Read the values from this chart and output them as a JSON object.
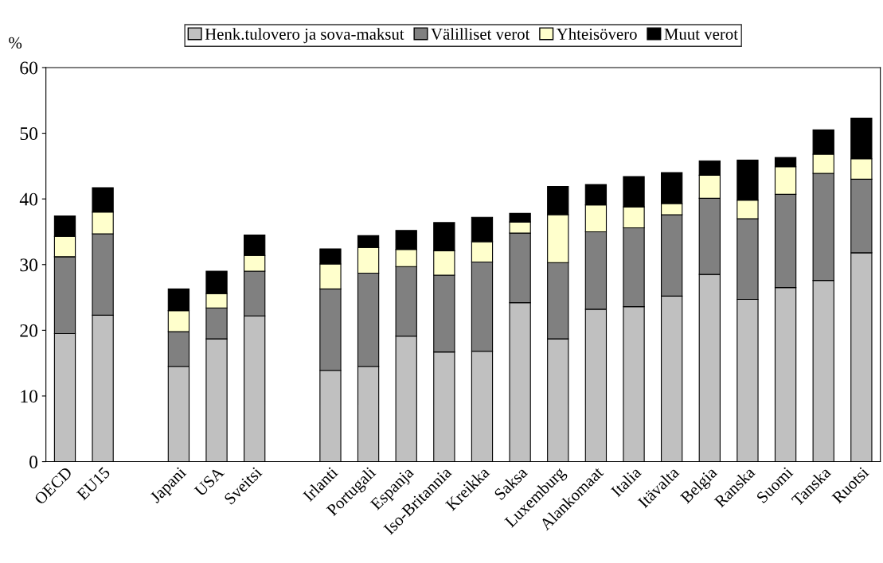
{
  "chart_data": {
    "type": "bar",
    "stacked": true,
    "ylabel": "%",
    "ylim": [
      0,
      60
    ],
    "yticks": [
      0,
      10,
      20,
      30,
      40,
      50,
      60
    ],
    "grid": false,
    "legend": "top",
    "categories": [
      "OECD",
      "EU15",
      null,
      "Japani",
      "USA",
      "Sveitsi",
      null,
      "Irlanti",
      "Portugali",
      "Espanja",
      "Iso-Britannia",
      "Kreikka",
      "Saksa",
      "Luxemburg",
      "Alankomaat",
      "Italia",
      "Itävalta",
      "Belgia",
      "Ranska",
      "Suomi",
      "Tanska",
      "Ruotsi"
    ],
    "series": [
      {
        "name": "Henk.tulovero ja sova-maksut",
        "color": "#c0c0c0",
        "values": [
          19.5,
          22.3,
          null,
          14.5,
          18.7,
          22.2,
          null,
          13.9,
          14.5,
          19.1,
          16.7,
          16.8,
          24.2,
          18.7,
          23.2,
          23.6,
          25.2,
          28.5,
          24.7,
          26.5,
          27.6,
          31.8
        ]
      },
      {
        "name": "Välilliset verot",
        "color": "#808080",
        "values": [
          11.7,
          12.4,
          null,
          5.3,
          4.7,
          6.8,
          null,
          12.4,
          14.2,
          10.6,
          11.7,
          13.6,
          10.6,
          11.6,
          11.8,
          12.0,
          12.4,
          11.6,
          12.3,
          14.2,
          16.3,
          11.2
        ]
      },
      {
        "name": "Yhteisövero",
        "color": "#ffffcc",
        "values": [
          3.1,
          3.3,
          null,
          3.2,
          2.2,
          2.4,
          null,
          3.8,
          3.9,
          2.6,
          3.7,
          3.1,
          1.7,
          7.3,
          4.1,
          3.2,
          1.7,
          3.5,
          2.8,
          4.2,
          2.9,
          3.1
        ]
      },
      {
        "name": "Muut verot",
        "color": "#000000",
        "values": [
          3.1,
          3.7,
          null,
          3.3,
          3.4,
          3.1,
          null,
          2.3,
          1.8,
          2.9,
          4.3,
          3.7,
          1.3,
          4.3,
          3.1,
          4.6,
          4.7,
          2.2,
          6.1,
          1.4,
          3.7,
          6.2
        ]
      }
    ]
  }
}
